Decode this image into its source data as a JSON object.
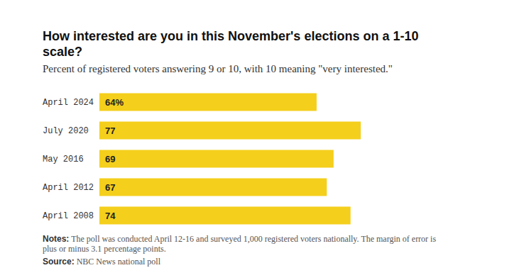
{
  "chart_data": {
    "type": "bar",
    "orientation": "horizontal",
    "title": "How interested are you in this November's elections on a 1-10 scale?",
    "subtitle": "Percent of registered voters answering 9 or 10, with 10 meaning \"very interested.\"",
    "categories": [
      "April 2024",
      "July 2020",
      "May 2016",
      "April 2012",
      "April 2008"
    ],
    "values": [
      64,
      77,
      69,
      67,
      74
    ],
    "value_labels": [
      "64%",
      "77",
      "69",
      "67",
      "74"
    ],
    "data_labels": true,
    "color": "#f4cf1c",
    "xlim": [
      0,
      100
    ],
    "tick_labels": false,
    "notes": {
      "label": "Notes:",
      "text": "The poll was conducted April 12-16 and surveyed 1,000 registered voters nationally. The margin of error is plus or minus 3.1 percentage points."
    },
    "source": {
      "label": "Source:",
      "text": "NBC News national poll"
    }
  }
}
